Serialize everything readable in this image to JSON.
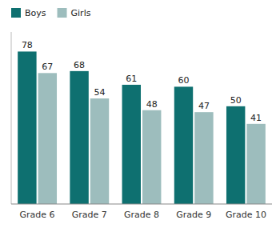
{
  "chart_data": {
    "type": "bar",
    "categories": [
      "Grade 6",
      "Grade 7",
      "Grade 8",
      "Grade 9",
      "Grade 10"
    ],
    "series": [
      {
        "name": "Boys",
        "color": "#0e7070",
        "values": [
          78,
          68,
          61,
          60,
          50
        ]
      },
      {
        "name": "Girls",
        "color": "#9dbdbd",
        "values": [
          67,
          54,
          48,
          47,
          41
        ]
      }
    ],
    "ylim": [
      0,
      88
    ],
    "grid": false,
    "legend": "upper left",
    "data_labels": true,
    "tick_labels": "x"
  }
}
